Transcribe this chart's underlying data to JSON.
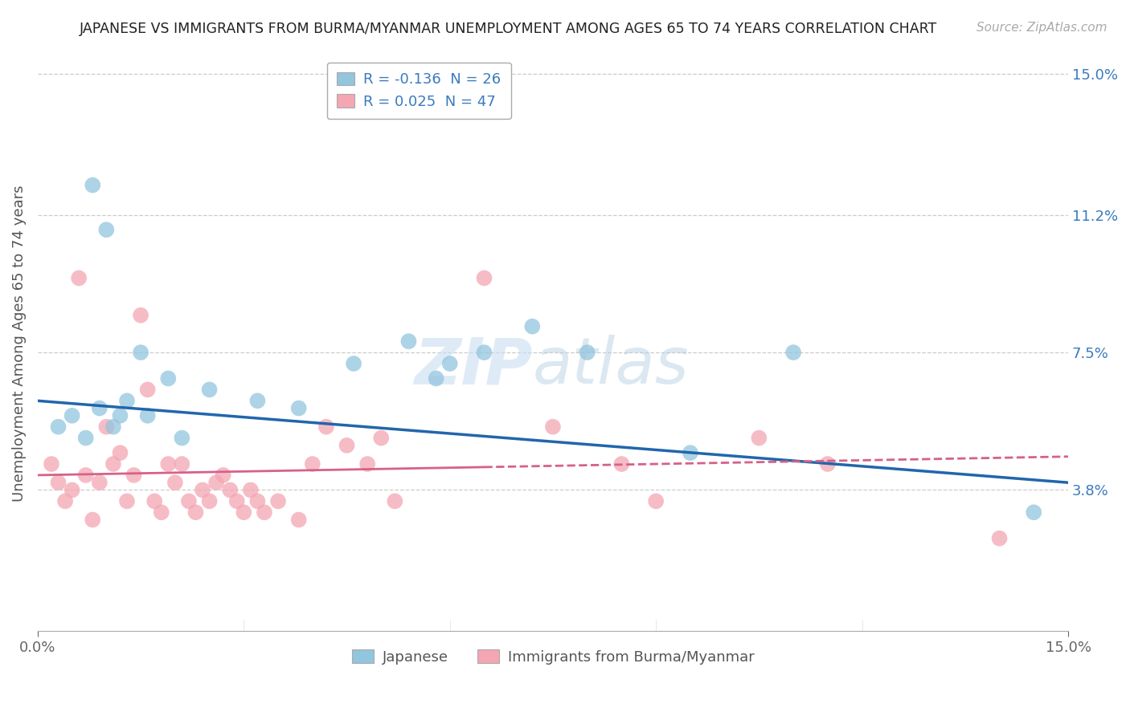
{
  "title": "JAPANESE VS IMMIGRANTS FROM BURMA/MYANMAR UNEMPLOYMENT AMONG AGES 65 TO 74 YEARS CORRELATION CHART",
  "source": "Source: ZipAtlas.com",
  "ylabel": "Unemployment Among Ages 65 to 74 years",
  "y_ticks": [
    3.8,
    7.5,
    11.2,
    15.0
  ],
  "y_tick_labels": [
    "3.8%",
    "7.5%",
    "11.2%",
    "15.0%"
  ],
  "x_range": [
    0.0,
    15.0
  ],
  "y_range": [
    0.0,
    15.5
  ],
  "legend_japanese_R": "-0.136",
  "legend_japanese_N": "26",
  "legend_burma_R": "0.025",
  "legend_burma_N": "47",
  "japanese_color": "#92c5de",
  "burma_color": "#f4a6b2",
  "japanese_line_color": "#2166ac",
  "burma_line_color": "#d6618a",
  "jp_line_start_y": 6.2,
  "jp_line_end_y": 4.0,
  "bm_line_start_y": 4.2,
  "bm_line_end_y": 4.7,
  "bm_solid_end_x": 6.5,
  "japanese_points_x": [
    0.3,
    0.7,
    0.8,
    1.0,
    1.1,
    1.2,
    1.3,
    1.5,
    1.6,
    1.9,
    2.1,
    2.5,
    3.2,
    4.6,
    5.4,
    6.0,
    6.5,
    7.2,
    8.0,
    9.5,
    11.0,
    14.5,
    3.8,
    5.8,
    0.5,
    0.9
  ],
  "japanese_points_y": [
    5.5,
    5.2,
    12.0,
    10.8,
    5.5,
    5.8,
    6.2,
    7.5,
    5.8,
    6.8,
    5.2,
    6.5,
    6.2,
    7.2,
    7.8,
    7.2,
    7.5,
    8.2,
    7.5,
    4.8,
    7.5,
    3.2,
    6.0,
    6.8,
    5.8,
    6.0
  ],
  "burma_points_x": [
    0.2,
    0.3,
    0.4,
    0.5,
    0.6,
    0.7,
    0.8,
    0.9,
    1.0,
    1.1,
    1.2,
    1.3,
    1.4,
    1.5,
    1.6,
    1.7,
    1.8,
    1.9,
    2.0,
    2.1,
    2.2,
    2.3,
    2.4,
    2.5,
    2.6,
    2.7,
    2.8,
    2.9,
    3.0,
    3.1,
    3.2,
    3.3,
    3.5,
    3.8,
    4.0,
    4.2,
    4.5,
    4.8,
    5.0,
    5.2,
    6.5,
    7.5,
    8.5,
    9.0,
    10.5,
    11.5,
    14.0
  ],
  "burma_points_y": [
    4.5,
    4.0,
    3.5,
    3.8,
    9.5,
    4.2,
    3.0,
    4.0,
    5.5,
    4.5,
    4.8,
    3.5,
    4.2,
    8.5,
    6.5,
    3.5,
    3.2,
    4.5,
    4.0,
    4.5,
    3.5,
    3.2,
    3.8,
    3.5,
    4.0,
    4.2,
    3.8,
    3.5,
    3.2,
    3.8,
    3.5,
    3.2,
    3.5,
    3.0,
    4.5,
    5.5,
    5.0,
    4.5,
    5.2,
    3.5,
    9.5,
    5.5,
    4.5,
    3.5,
    5.2,
    4.5,
    2.5
  ]
}
